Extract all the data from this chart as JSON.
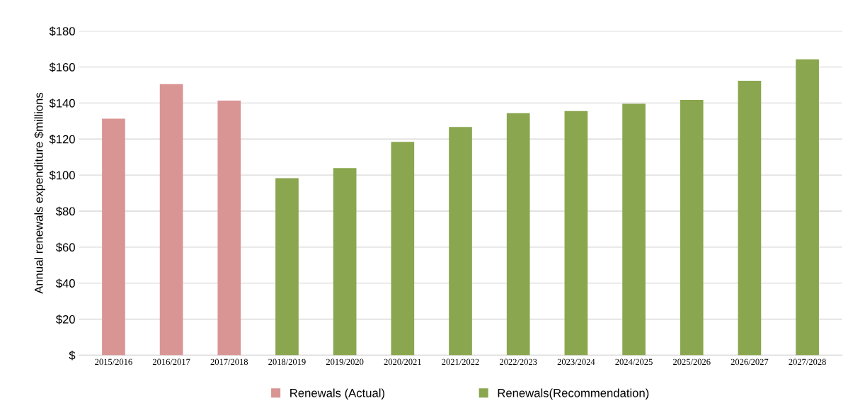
{
  "chart_data": {
    "type": "bar",
    "ylabel": "Annual renewals expenditure $millions",
    "categories": [
      "2015/2016",
      "2016/2017",
      "2017/2018",
      "2018/2019",
      "2019/2020",
      "2020/2021",
      "2021/2022",
      "2022/2023",
      "2023/2024",
      "2024/2025",
      "2025/2026",
      "2026/2027",
      "2027/2028"
    ],
    "series": [
      {
        "name": "Renewals (Actual)",
        "color": "#d99594",
        "values": [
          131.3,
          150.5,
          141.3,
          null,
          null,
          null,
          null,
          null,
          null,
          null,
          null,
          null,
          null
        ]
      },
      {
        "name": "Renewals(Recommendation)",
        "color": "#8aa64e",
        "values": [
          null,
          null,
          null,
          98.3,
          103.9,
          118.4,
          126.7,
          134.4,
          135.5,
          139.6,
          141.7,
          152.4,
          164.3
        ]
      }
    ],
    "ylim": [
      0,
      180
    ],
    "yticks": [
      {
        "value": 0,
        "label": "$"
      },
      {
        "value": 20,
        "label": "$20"
      },
      {
        "value": 40,
        "label": "$40"
      },
      {
        "value": 60,
        "label": "$60"
      },
      {
        "value": 80,
        "label": "$80"
      },
      {
        "value": 100,
        "label": "$100"
      },
      {
        "value": 120,
        "label": "$120"
      },
      {
        "value": 140,
        "label": "$140"
      },
      {
        "value": 160,
        "label": "$160"
      },
      {
        "value": 180,
        "label": "$180"
      }
    ],
    "grid": "y",
    "legend": "bottom"
  }
}
